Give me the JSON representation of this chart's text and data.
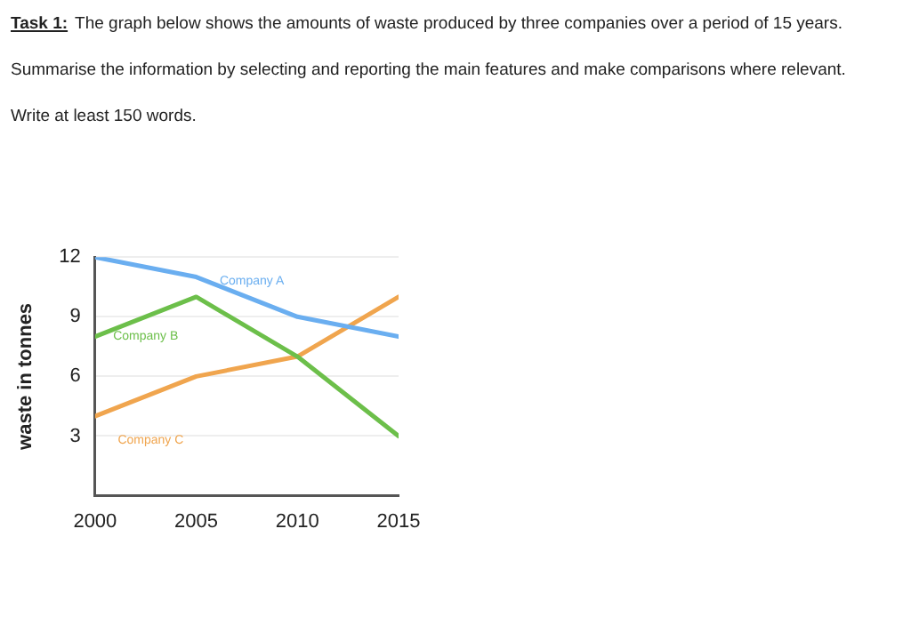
{
  "chart_data": {
    "type": "line",
    "title": "Task 1:",
    "subtitle": "The graph below shows the amounts of waste produced by three companies over a period of 15 years.",
    "annotations": [
      "Summarise the information by selecting and reporting the main features and make comparisons where relevant.",
      "Write at least 150 words."
    ],
    "ylabel": "waste in tonnes",
    "x": [
      2000,
      2005,
      2010,
      2015
    ],
    "xlim": [
      2000,
      2015
    ],
    "xticks": [
      2000,
      2005,
      2010,
      2015
    ],
    "ylim": [
      0,
      12
    ],
    "yticks": [
      3,
      6,
      9,
      12
    ],
    "grid": "y",
    "marker": "none",
    "legend": false,
    "series": [
      {
        "name": "Company A",
        "color": "#6aaef0",
        "values": [
          12,
          11,
          9,
          8
        ]
      },
      {
        "name": "Company B",
        "color": "#6cbf4a",
        "values": [
          8,
          10,
          7,
          3
        ]
      },
      {
        "name": "Company C",
        "color": "#f0a54e",
        "values": [
          4,
          6,
          7,
          10
        ]
      }
    ]
  }
}
